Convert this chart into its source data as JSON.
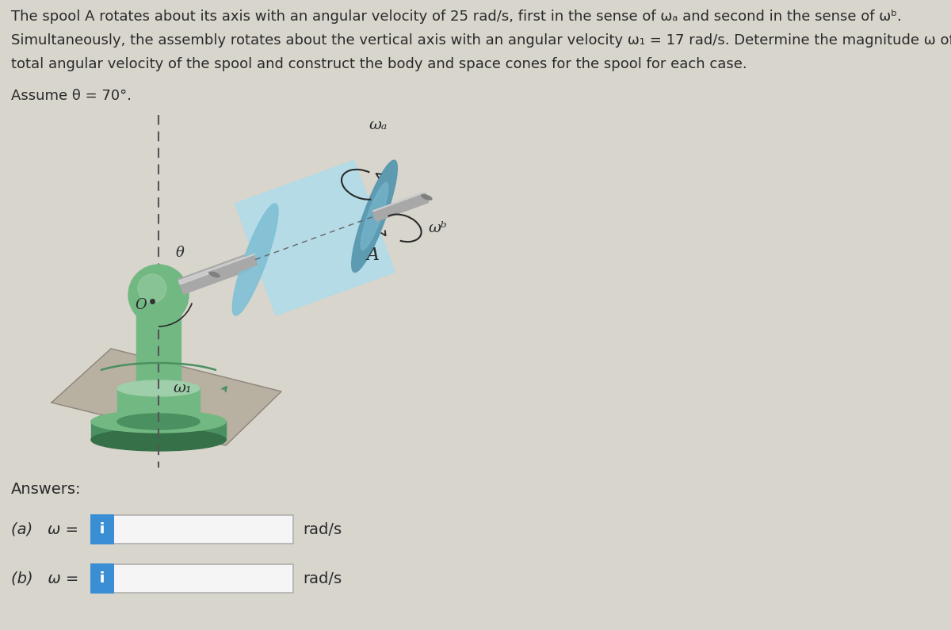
{
  "bg_color": "#d8d5cd",
  "panel_color": "#dedad2",
  "title_line1": "The spool A rotates about its axis with an angular velocity of 25 rad/s, first in the sense of ωₐ and second in the sense of ωᵇ.",
  "title_line2": "Simultaneously, the assembly rotates about the vertical axis with an angular velocity ω₁ = 17 rad/s. Determine the magnitude ω of the",
  "title_line3": "total angular velocity of the spool and construct the body and space cones for the spool for each case.",
  "assume_text": "Assume θ = 70°.",
  "answers_text": "Answers:",
  "label_a": "(a)   ω =",
  "label_b": "(b)   ω =",
  "unit": "rad/s",
  "info_btn_color": "#3a8fd4",
  "info_btn_text": "i",
  "box_border_color": "#b0b0b0",
  "box_fill_color": "#f5f5f5",
  "text_color": "#2a2a2a",
  "title_fontsize": 13.0,
  "assume_fontsize": 13.0,
  "answers_fontsize": 14,
  "label_fontsize": 14,
  "unit_fontsize": 14,
  "green_light": "#9fcfaa",
  "green_mid": "#72b882",
  "green_dark": "#4a9060",
  "green_darkest": "#357048",
  "blue_light": "#b0dcea",
  "blue_mid": "#80c0d5",
  "blue_dark": "#5898b0",
  "metal_light": "#d8d8d8",
  "metal_mid": "#a8a8a8",
  "metal_dark": "#808080",
  "plate_color": "#b8b0a0",
  "plate_dark": "#908880"
}
